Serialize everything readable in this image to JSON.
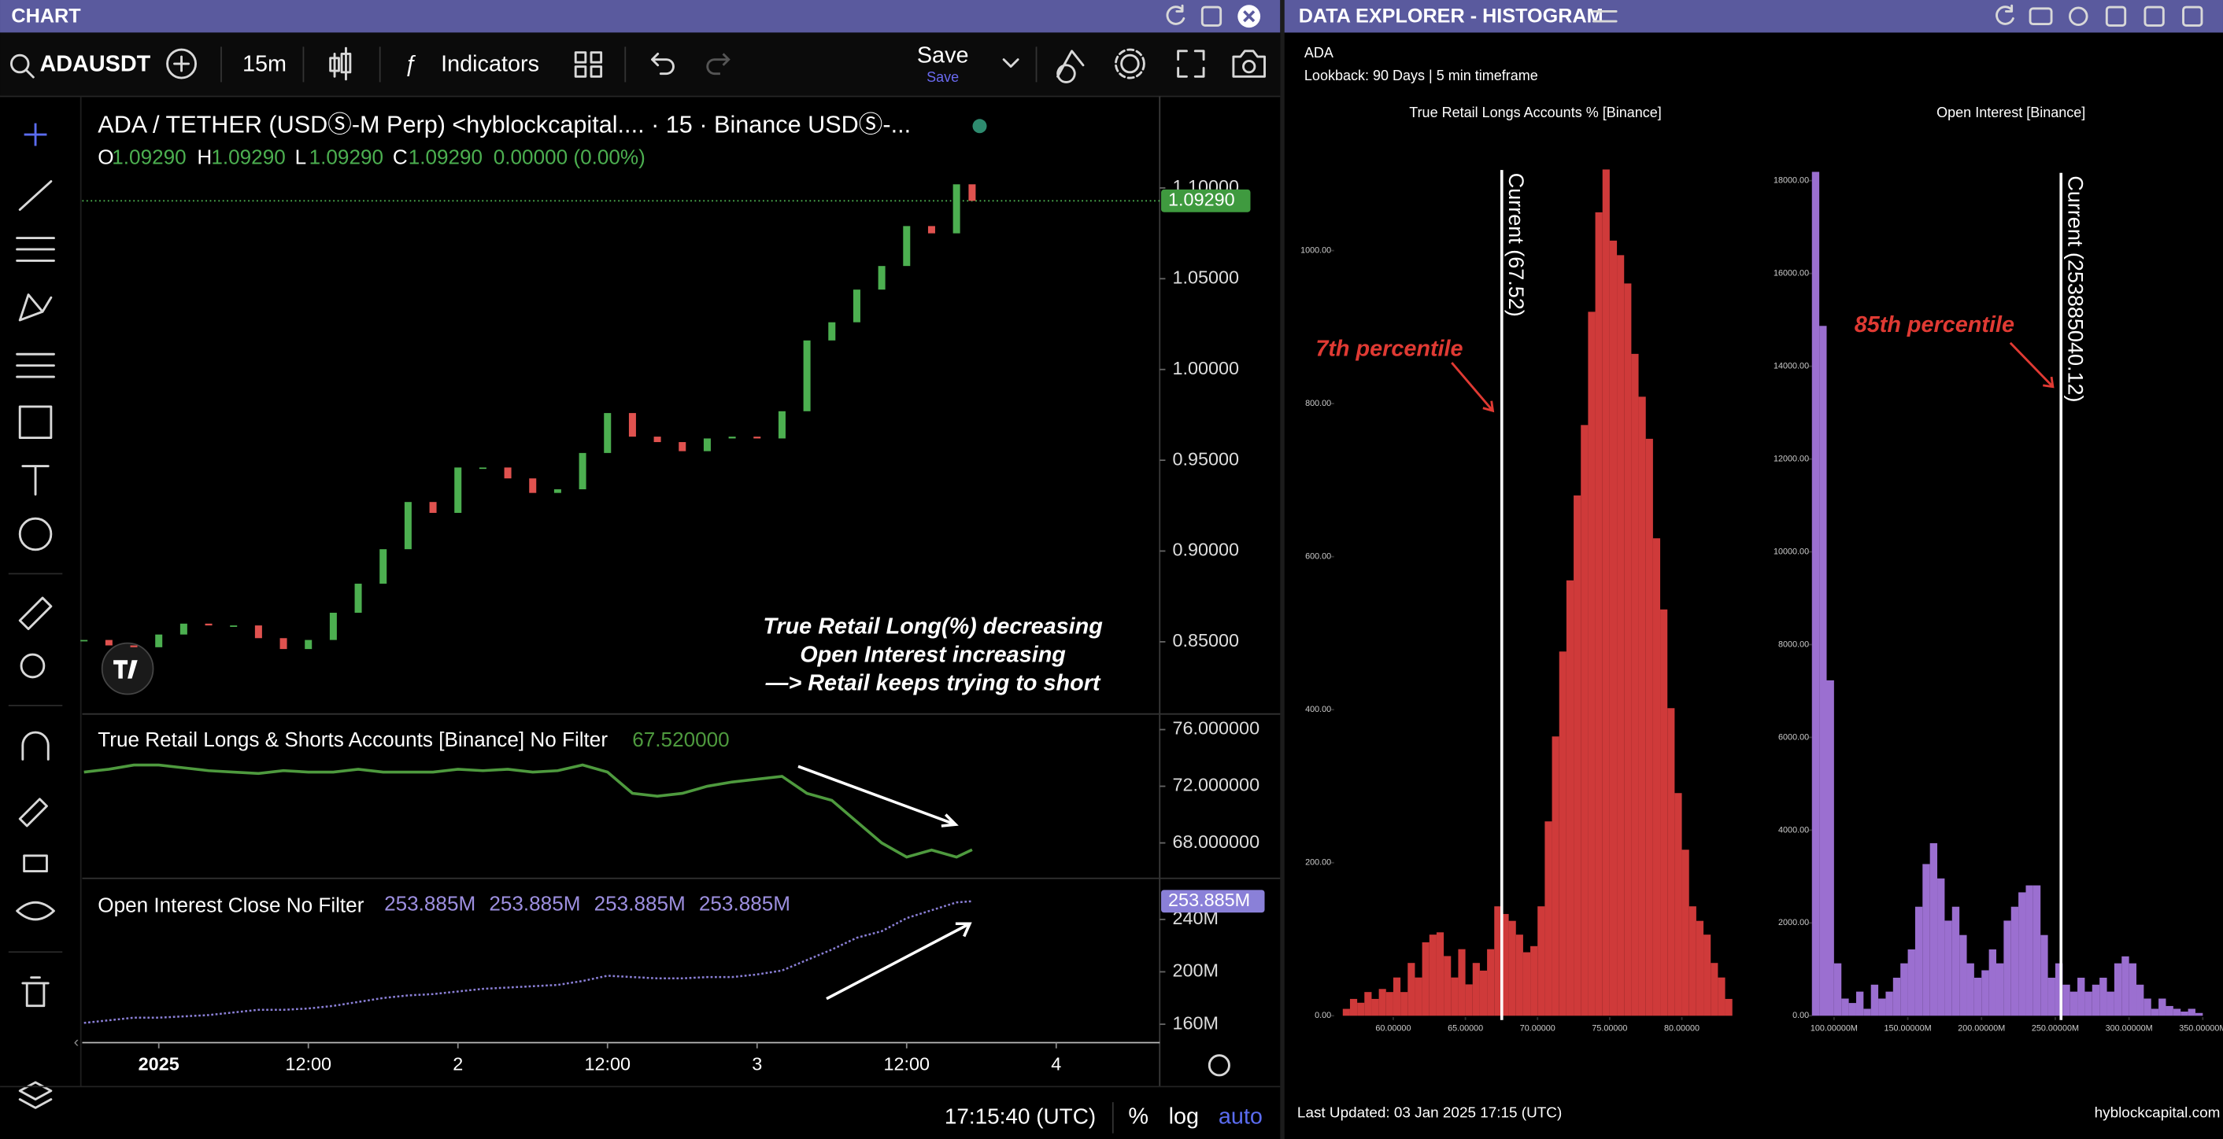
{
  "chart_panel": {
    "title": "CHART",
    "symbol": "ADAUSDT",
    "interval": "15m",
    "indicators": "Indicators",
    "save": "Save",
    "save_hint": "Save",
    "legend": "ADA / TETHER (USDⓈ-M Perp) <hyblockcapital.... · 15 · Binance USDⓈ-...",
    "ohlc": [
      [
        "O",
        "1.09290"
      ],
      [
        "H",
        "1.09290"
      ],
      [
        "L",
        "1.09290"
      ],
      [
        "C",
        "1.09290"
      ]
    ],
    "change": "0.00000 (0.00%)",
    "annotation": [
      "True Retail Long(%) decreasing",
      "Open Interest increasing",
      "—> Retail keeps trying to short"
    ],
    "clock": "17:15:40 (UTC)",
    "percent": "%",
    "log": "log",
    "auto": "auto"
  },
  "explorer": {
    "title": "DATA EXPLORER - HISTOGRAM",
    "symbol": "ADA",
    "lookback": "Lookback: 90 Days | 5 min timeframe",
    "updated": "Last Updated: 03 Jan 2025 17:15 (UTC)",
    "site": "hyblockcapital.com"
  },
  "chart_data": [
    {
      "type": "candlestick",
      "up_color": "#4caf50",
      "down_color": "#e0524f",
      "x": [
        -6,
        -4,
        -2,
        0,
        2,
        4,
        6,
        8,
        10,
        12,
        14,
        16,
        18,
        20,
        22,
        24,
        26,
        28,
        30,
        32,
        34,
        36,
        38,
        40,
        42,
        44,
        46,
        48,
        50,
        52,
        54,
        56,
        58,
        60,
        62,
        64,
        65.25
      ],
      "close": [
        0.851,
        0.848,
        0.847,
        0.854,
        0.86,
        0.859,
        0.859,
        0.852,
        0.846,
        0.851,
        0.866,
        0.882,
        0.901,
        0.927,
        0.921,
        0.946,
        0.946,
        0.94,
        0.932,
        0.934,
        0.954,
        0.976,
        0.963,
        0.96,
        0.955,
        0.962,
        0.963,
        0.962,
        0.977,
        1.016,
        1.026,
        1.044,
        1.057,
        1.079,
        1.075,
        1.102,
        1.0929
      ],
      "xlim": [
        -6.14,
        80.3
      ],
      "xticks": [
        {
          "value": 0,
          "label": "2025"
        },
        {
          "value": 12,
          "label": "12:00"
        },
        {
          "value": 24,
          "label": "2"
        },
        {
          "value": 36,
          "label": "12:00"
        },
        {
          "value": 48,
          "label": "3"
        },
        {
          "value": 60,
          "label": "12:00"
        },
        {
          "value": 72,
          "label": "4"
        }
      ],
      "ylim": [
        0.811,
        1.145
      ],
      "yticks": [
        {
          "value": 0.85,
          "label": "0.85000"
        },
        {
          "value": 0.9,
          "label": "0.90000"
        },
        {
          "value": 0.95,
          "label": "0.95000"
        },
        {
          "value": 1,
          "label": "1.00000"
        },
        {
          "value": 1.05,
          "label": "1.05000"
        },
        {
          "value": 1.1,
          "label": "1.10000"
        }
      ],
      "last_price": {
        "value": 1.0929,
        "label": "1.09290"
      },
      "tag_color": "#3f9a3f"
    },
    {
      "type": "line",
      "title": "True Retail Longs & Shorts Accounts [Binance] No Filter",
      "last_label": "67.520000",
      "color": "#4e9a3e",
      "values": [
        73.0,
        73.2,
        73.5,
        73.5,
        73.3,
        73.1,
        73.0,
        72.9,
        73.1,
        73.0,
        73.0,
        73.2,
        73.0,
        73.0,
        73.0,
        73.2,
        73.1,
        73.2,
        73.0,
        73.1,
        73.5,
        73.0,
        71.5,
        71.3,
        71.5,
        72.0,
        72.3,
        72.5,
        72.7,
        71.5,
        71.0,
        69.5,
        68.0,
        67.0,
        67.5,
        67.0,
        67.52
      ],
      "ylim": [
        65.5,
        77
      ],
      "yticks": [
        {
          "value": 68,
          "label": "68.000000"
        },
        {
          "value": 72,
          "label": "72.000000"
        },
        {
          "value": 76,
          "label": "76.000000"
        }
      ]
    },
    {
      "type": "line",
      "title": "Open Interest Close No Filter",
      "legend_values": [
        "253.885M",
        "253.885M",
        "253.885M",
        "253.885M"
      ],
      "color": "#8a7fd6",
      "dashed": true,
      "values": [
        161,
        163,
        165,
        165,
        166,
        167,
        169,
        171,
        171,
        172,
        174,
        177,
        180,
        182,
        183,
        185,
        187,
        188,
        189,
        190,
        193,
        197,
        196,
        195,
        195,
        196,
        196,
        198,
        201,
        209,
        217,
        226,
        231,
        241,
        247,
        253,
        253.885
      ],
      "ylim": [
        147,
        269.2
      ],
      "yticks": [
        {
          "value": 160,
          "label": "160M"
        },
        {
          "value": 200,
          "label": "200M"
        },
        {
          "value": 240,
          "label": "240M"
        }
      ],
      "last_price": {
        "value": 253.885,
        "label": "253.885M"
      },
      "tag_color": "#8a80d8"
    },
    {
      "type": "histogram",
      "title": "True Retail Longs Accounts % [Binance]",
      "color": "#cf3a3a",
      "annotation": "7th percentile",
      "bins": [
        56.5,
        57,
        57.5,
        58,
        58.5,
        59,
        59.5,
        60,
        60.5,
        61,
        61.5,
        62,
        62.5,
        63,
        63.5,
        64,
        64.5,
        65,
        65.5,
        66,
        66.5,
        67,
        67.5,
        68,
        68.5,
        69,
        69.5,
        70,
        70.5,
        71,
        71.5,
        72,
        72.5,
        73,
        73.5,
        74,
        74.5,
        75,
        75.5,
        76,
        76.5,
        77,
        77.5,
        78,
        78.5,
        79,
        79.5,
        80,
        80.5,
        81,
        81.5,
        82,
        82.5,
        83,
        83.5
      ],
      "counts": [
        9,
        22,
        17,
        31,
        22,
        35,
        31,
        50,
        31,
        69,
        50,
        96,
        106,
        109,
        78,
        50,
        87,
        41,
        69,
        59,
        87,
        143,
        133,
        124,
        106,
        83,
        91,
        143,
        254,
        365,
        476,
        569,
        680,
        772,
        920,
        1050,
        1106,
        1013,
        994,
        957,
        865,
        809,
        754,
        624,
        531,
        402,
        291,
        217,
        143,
        124,
        106,
        69,
        50,
        22
      ],
      "xlim": [
        55.8,
        83.9
      ],
      "ylim": [
        0,
        1109
      ],
      "xticks": [
        {
          "value": 60,
          "label": "60.00000"
        },
        {
          "value": 65,
          "label": "65.00000"
        },
        {
          "value": 70,
          "label": "70.00000"
        },
        {
          "value": 75,
          "label": "75.00000"
        },
        {
          "value": 80,
          "label": "80.00000"
        }
      ],
      "yticks": [
        {
          "value": 0,
          "label": "0.00"
        },
        {
          "value": 200,
          "label": "200.00"
        },
        {
          "value": 400,
          "label": "400.00"
        },
        {
          "value": 600,
          "label": "600.00"
        },
        {
          "value": 800,
          "label": "800.00"
        },
        {
          "value": 1000,
          "label": "1000.00"
        }
      ],
      "current": {
        "value": 67.52,
        "label": "Current (67.52)"
      }
    },
    {
      "type": "histogram",
      "title": "Open Interest [Binance]",
      "color": "#9b6fd0",
      "annotation": "85th percentile",
      "bins": [
        85000000,
        90000000,
        95000000,
        100000000,
        105000000,
        110000000,
        115000000,
        120000000,
        125000000,
        130000000,
        135000000,
        140000000,
        145000000,
        150000000,
        155000000,
        160000000,
        165000000,
        170000000,
        175000000,
        180000000,
        185000000,
        190000000,
        195000000,
        200000000,
        205000000,
        210000000,
        215000000,
        220000000,
        225000000,
        230000000,
        235000000,
        240000000,
        245000000,
        250000000,
        255000000,
        260000000,
        265000000,
        270000000,
        275000000,
        280000000,
        285000000,
        290000000,
        295000000,
        300000000,
        305000000,
        310000000,
        315000000,
        320000000,
        325000000,
        330000000,
        335000000,
        340000000,
        345000000,
        350000000
      ],
      "counts": [
        18190,
        14870,
        7230,
        1130,
        370,
        275,
        520,
        150,
        670,
        370,
        520,
        820,
        1130,
        1430,
        2350,
        3270,
        3720,
        2960,
        2050,
        2350,
        1740,
        1130,
        820,
        980,
        1430,
        1130,
        2050,
        2350,
        2660,
        2810,
        2810,
        1740,
        820,
        1130,
        670,
        520,
        820,
        520,
        670,
        820,
        520,
        1130,
        1280,
        1130,
        670,
        370,
        150,
        370,
        210,
        150,
        90,
        150,
        60
      ],
      "xlim": [
        84000000,
        356000000
      ],
      "ylim": [
        0,
        18230
      ],
      "xticks": [
        {
          "value": 100000000,
          "label": "100.00000M"
        },
        {
          "value": 150000000,
          "label": "150.00000M"
        },
        {
          "value": 200000000,
          "label": "200.00000M"
        },
        {
          "value": 250000000,
          "label": "250.00000M"
        },
        {
          "value": 300000000,
          "label": "300.00000M"
        },
        {
          "value": 350000000,
          "label": "350.00000M"
        }
      ],
      "yticks": [
        {
          "value": 0,
          "label": "0.00"
        },
        {
          "value": 2000,
          "label": "2000.00"
        },
        {
          "value": 4000,
          "label": "4000.00"
        },
        {
          "value": 6000,
          "label": "6000.00"
        },
        {
          "value": 8000,
          "label": "8000.00"
        },
        {
          "value": 10000,
          "label": "10000.00"
        },
        {
          "value": 12000,
          "label": "12000.00"
        },
        {
          "value": 14000,
          "label": "14000.00"
        },
        {
          "value": 16000,
          "label": "16000.00"
        },
        {
          "value": 18000,
          "label": "18000.00"
        }
      ],
      "current": {
        "value": 253885040.12,
        "label": "Current (253885040.12)"
      }
    }
  ]
}
